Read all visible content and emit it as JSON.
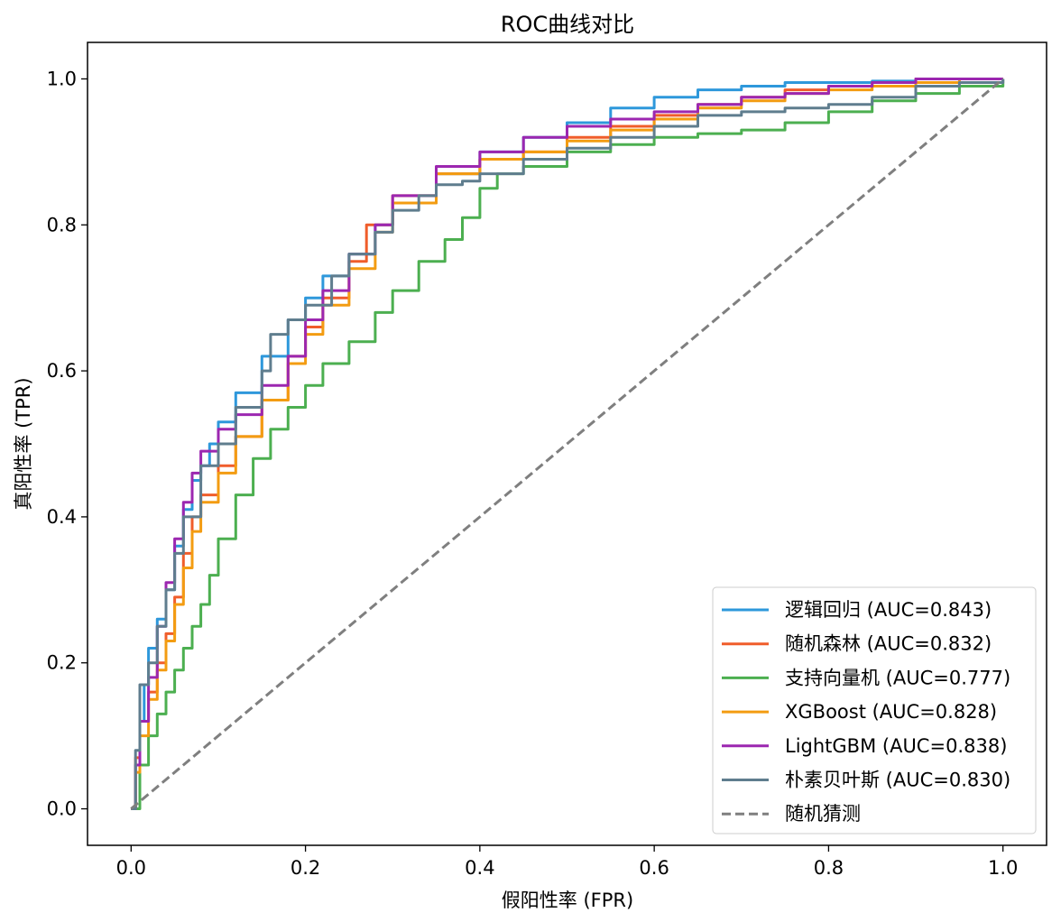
{
  "chart_data": {
    "type": "line",
    "title": "ROC曲线对比",
    "xlabel": "假阳性率 (FPR)",
    "ylabel": "真阳性率 (TPR)",
    "xlim": [
      -0.05,
      1.05
    ],
    "ylim": [
      -0.05,
      1.05
    ],
    "xticks": [
      "0.0",
      "0.2",
      "0.4",
      "0.6",
      "0.8",
      "1.0"
    ],
    "yticks": [
      "0.0",
      "0.2",
      "0.4",
      "0.6",
      "0.8",
      "1.0"
    ],
    "grid": false,
    "legend": "lower right",
    "series": [
      {
        "name": "逻辑回归 (AUC=0.843)",
        "color": "#2e98db",
        "x": [
          0,
          0.005,
          0.01,
          0.015,
          0.02,
          0.03,
          0.04,
          0.05,
          0.06,
          0.07,
          0.08,
          0.09,
          0.1,
          0.12,
          0.15,
          0.18,
          0.2,
          0.22,
          0.25,
          0.28,
          0.3,
          0.35,
          0.4,
          0.45,
          0.5,
          0.55,
          0.6,
          0.65,
          0.7,
          0.75,
          0.8,
          0.85,
          0.9,
          0.95,
          1.0
        ],
        "y": [
          0,
          0.06,
          0.12,
          0.17,
          0.22,
          0.26,
          0.3,
          0.36,
          0.41,
          0.45,
          0.47,
          0.5,
          0.53,
          0.57,
          0.62,
          0.67,
          0.7,
          0.73,
          0.76,
          0.8,
          0.83,
          0.87,
          0.9,
          0.92,
          0.94,
          0.96,
          0.975,
          0.985,
          0.99,
          0.995,
          0.995,
          0.997,
          1.0,
          1.0,
          1.0
        ]
      },
      {
        "name": "随机森林 (AUC=0.832)",
        "color": "#f05d2b",
        "x": [
          0,
          0.005,
          0.01,
          0.02,
          0.03,
          0.04,
          0.05,
          0.06,
          0.07,
          0.08,
          0.1,
          0.12,
          0.15,
          0.18,
          0.2,
          0.22,
          0.25,
          0.27,
          0.3,
          0.35,
          0.4,
          0.45,
          0.5,
          0.55,
          0.6,
          0.65,
          0.7,
          0.75,
          0.8,
          0.85,
          0.9,
          0.95,
          1.0
        ],
        "y": [
          0,
          0.07,
          0.12,
          0.16,
          0.2,
          0.24,
          0.29,
          0.35,
          0.4,
          0.43,
          0.47,
          0.51,
          0.56,
          0.62,
          0.66,
          0.7,
          0.75,
          0.8,
          0.84,
          0.87,
          0.89,
          0.9,
          0.92,
          0.935,
          0.95,
          0.965,
          0.975,
          0.985,
          0.99,
          0.995,
          1.0,
          1.0,
          1.0
        ]
      },
      {
        "name": "支持向量机 (AUC=0.777)",
        "color": "#4caf50",
        "x": [
          0,
          0.01,
          0.02,
          0.03,
          0.04,
          0.05,
          0.06,
          0.07,
          0.08,
          0.09,
          0.1,
          0.12,
          0.14,
          0.16,
          0.18,
          0.2,
          0.22,
          0.25,
          0.28,
          0.3,
          0.33,
          0.36,
          0.38,
          0.4,
          0.42,
          0.45,
          0.5,
          0.55,
          0.6,
          0.65,
          0.7,
          0.75,
          0.8,
          0.85,
          0.9,
          0.95,
          1.0
        ],
        "y": [
          0,
          0.06,
          0.1,
          0.13,
          0.16,
          0.19,
          0.22,
          0.25,
          0.28,
          0.32,
          0.37,
          0.43,
          0.48,
          0.52,
          0.55,
          0.58,
          0.61,
          0.64,
          0.68,
          0.71,
          0.75,
          0.78,
          0.81,
          0.85,
          0.87,
          0.88,
          0.9,
          0.91,
          0.92,
          0.925,
          0.93,
          0.94,
          0.955,
          0.97,
          0.98,
          0.99,
          1.0
        ]
      },
      {
        "name": "XGBoost (AUC=0.828)",
        "color": "#f39c12",
        "x": [
          0,
          0.005,
          0.01,
          0.02,
          0.03,
          0.04,
          0.05,
          0.06,
          0.07,
          0.08,
          0.1,
          0.12,
          0.15,
          0.18,
          0.2,
          0.22,
          0.25,
          0.28,
          0.3,
          0.35,
          0.4,
          0.45,
          0.5,
          0.55,
          0.6,
          0.65,
          0.7,
          0.75,
          0.8,
          0.85,
          0.9,
          0.95,
          1.0
        ],
        "y": [
          0,
          0.05,
          0.1,
          0.15,
          0.19,
          0.23,
          0.28,
          0.33,
          0.38,
          0.42,
          0.46,
          0.51,
          0.56,
          0.61,
          0.65,
          0.69,
          0.74,
          0.79,
          0.83,
          0.87,
          0.89,
          0.9,
          0.915,
          0.93,
          0.945,
          0.96,
          0.97,
          0.98,
          0.985,
          0.99,
          0.995,
          1.0,
          1.0
        ]
      },
      {
        "name": "LightGBM (AUC=0.838)",
        "color": "#9c27b0",
        "x": [
          0,
          0.005,
          0.01,
          0.02,
          0.03,
          0.04,
          0.05,
          0.06,
          0.07,
          0.08,
          0.1,
          0.12,
          0.15,
          0.18,
          0.2,
          0.22,
          0.25,
          0.28,
          0.3,
          0.35,
          0.4,
          0.45,
          0.5,
          0.55,
          0.6,
          0.65,
          0.7,
          0.75,
          0.8,
          0.85,
          0.9,
          0.95,
          1.0
        ],
        "y": [
          0,
          0.06,
          0.12,
          0.18,
          0.25,
          0.31,
          0.37,
          0.42,
          0.46,
          0.49,
          0.52,
          0.54,
          0.58,
          0.62,
          0.67,
          0.71,
          0.76,
          0.8,
          0.84,
          0.88,
          0.9,
          0.92,
          0.935,
          0.945,
          0.955,
          0.965,
          0.975,
          0.98,
          0.99,
          0.995,
          1.0,
          1.0,
          1.0
        ]
      },
      {
        "name": "朴素贝叶斯 (AUC=0.830)",
        "color": "#5f7d8e",
        "x": [
          0,
          0.005,
          0.01,
          0.02,
          0.03,
          0.04,
          0.05,
          0.06,
          0.08,
          0.1,
          0.12,
          0.15,
          0.16,
          0.18,
          0.2,
          0.23,
          0.25,
          0.28,
          0.3,
          0.33,
          0.35,
          0.38,
          0.4,
          0.45,
          0.5,
          0.55,
          0.6,
          0.65,
          0.7,
          0.75,
          0.8,
          0.85,
          0.9,
          0.95,
          1.0
        ],
        "y": [
          0,
          0.08,
          0.17,
          0.2,
          0.25,
          0.3,
          0.35,
          0.4,
          0.47,
          0.5,
          0.55,
          0.6,
          0.65,
          0.67,
          0.69,
          0.73,
          0.76,
          0.79,
          0.82,
          0.84,
          0.855,
          0.86,
          0.87,
          0.89,
          0.905,
          0.92,
          0.935,
          0.95,
          0.955,
          0.96,
          0.965,
          0.975,
          0.99,
          0.995,
          1.0
        ]
      },
      {
        "name": "随机猜测",
        "color": "#7f7f7f",
        "dashed": true,
        "x": [
          0,
          1
        ],
        "y": [
          0,
          1
        ]
      }
    ]
  }
}
